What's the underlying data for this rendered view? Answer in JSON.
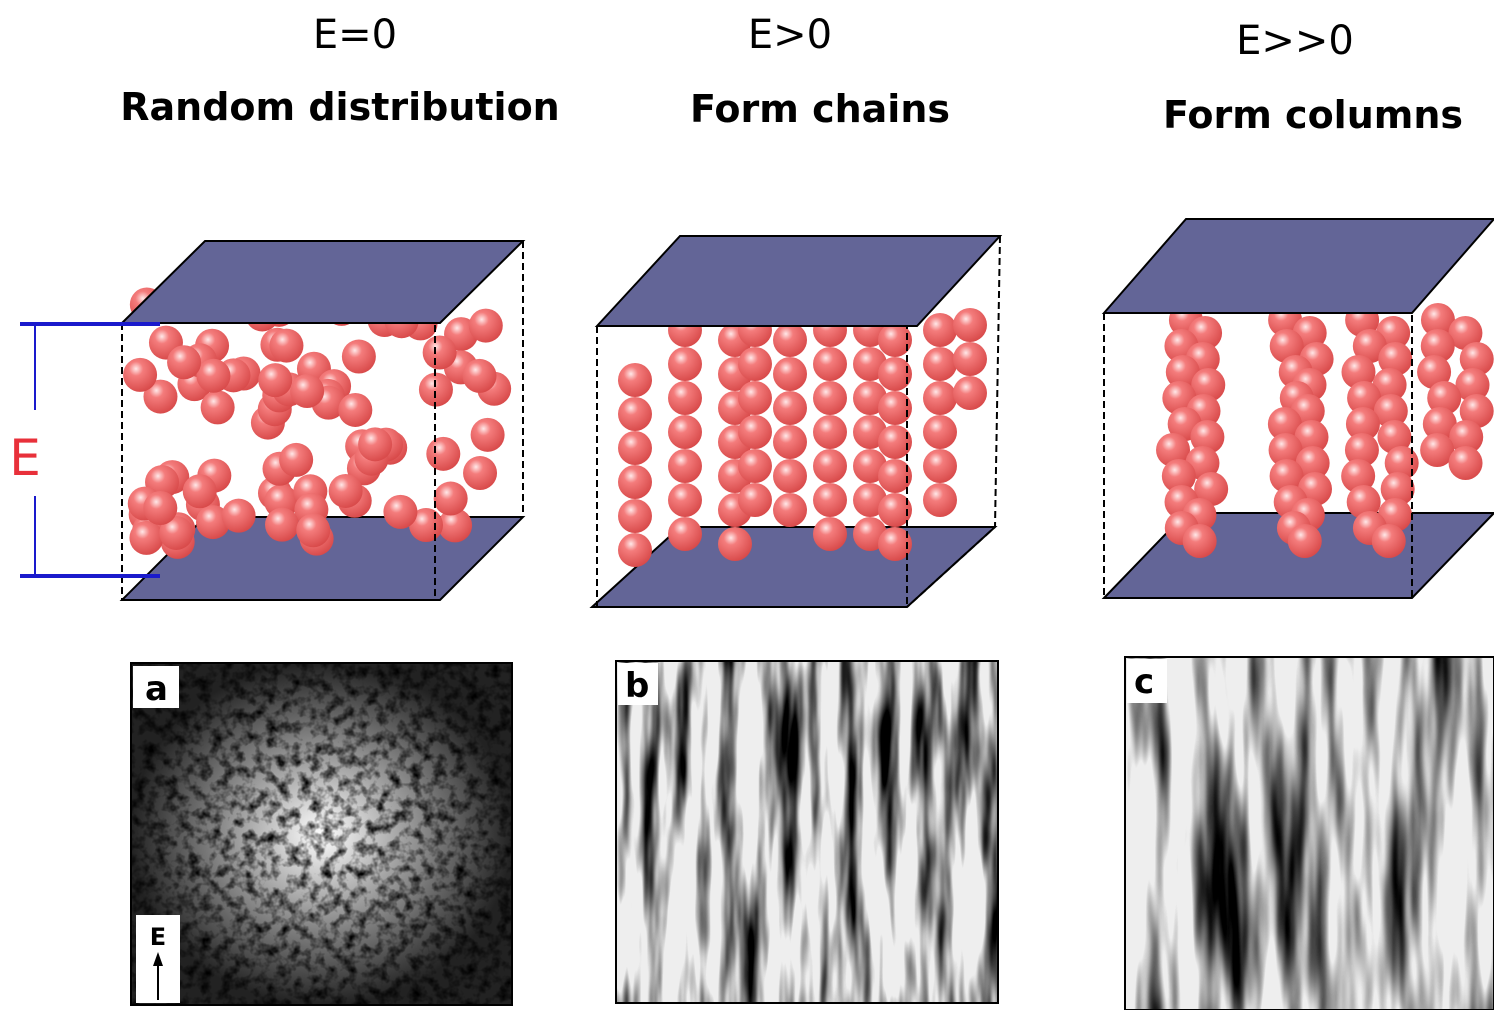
{
  "field_label": "E",
  "panels": [
    {
      "field": "E=0",
      "label": "Random distribution",
      "photo_label": "a",
      "photo_arrow_label": "E"
    },
    {
      "field": "E>0",
      "label": "Form chains",
      "photo_label": "b"
    },
    {
      "field": "E>>0",
      "label": "Form columns",
      "photo_label": "c"
    }
  ]
}
